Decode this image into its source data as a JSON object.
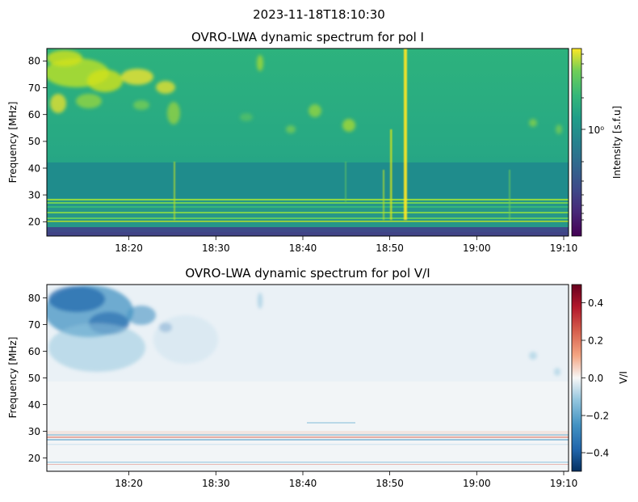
{
  "figure": {
    "suptitle": "2023-11-18T18:10:30"
  },
  "chart_data": [
    {
      "type": "heatmap",
      "title": "OVRO-LWA dynamic spectrum for pol I",
      "xlabel": "",
      "ylabel": "Frequency [MHz]",
      "x_ticks": [
        "18:20",
        "18:30",
        "18:40",
        "18:50",
        "19:00",
        "19:10"
      ],
      "x_tick_minutes": [
        10,
        20,
        30,
        40,
        50,
        60
      ],
      "xlim_minutes": [
        0.5,
        60.5
      ],
      "y_ticks": [
        20,
        30,
        40,
        50,
        60,
        70,
        80
      ],
      "ylim": [
        15,
        85
      ],
      "colormap": "viridis",
      "colorbar": {
        "label": "Intensity [s.f.u]",
        "scale": "log",
        "ticks": [
          "10⁰"
        ],
        "tick_values": [
          1
        ]
      },
      "features": {
        "bright_region": {
          "x_minutes": [
            0.5,
            15
          ],
          "y": [
            58,
            85
          ]
        },
        "vertical_bursts_minutes": [
          15.5,
          41.8,
          42.5,
          44.0
        ],
        "rfi_lines_mhz": [
          20.5,
          22,
          24,
          26.5,
          27.5,
          28.5
        ]
      }
    },
    {
      "type": "heatmap",
      "title": "OVRO-LWA dynamic spectrum for pol V/I",
      "xlabel": "",
      "ylabel": "Frequency [MHz]",
      "x_ticks": [
        "18:20",
        "18:30",
        "18:40",
        "18:50",
        "19:00",
        "19:10"
      ],
      "x_tick_minutes": [
        10,
        20,
        30,
        40,
        50,
        60
      ],
      "xlim_minutes": [
        0.5,
        60.5
      ],
      "y_ticks": [
        20,
        30,
        40,
        50,
        60,
        70,
        80
      ],
      "ylim": [
        15,
        85
      ],
      "colormap": "RdBu_r",
      "colorbar": {
        "label": "V/I",
        "scale": "linear",
        "ticks": [
          "−0.4",
          "−0.2",
          "0.0",
          "0.2",
          "0.4"
        ],
        "tick_values": [
          -0.4,
          -0.2,
          0.0,
          0.2,
          0.4
        ],
        "range": [
          -0.5,
          0.5
        ]
      },
      "features": {
        "polarized_region": {
          "x_minutes": [
            0.5,
            15
          ],
          "y": [
            62,
            85
          ],
          "value": -0.4
        },
        "mixed_band_mhz": [
          26,
          30
        ]
      }
    }
  ]
}
